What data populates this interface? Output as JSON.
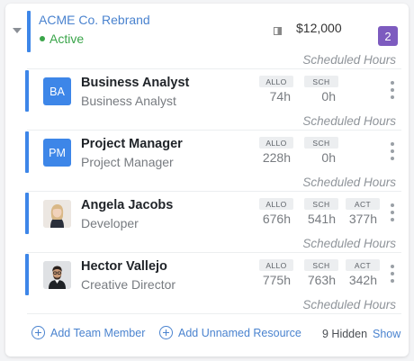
{
  "project": {
    "title": "ACME Co. Rebrand",
    "status": "Active",
    "budget": "$12,000",
    "member_count": "2",
    "section_label": "Scheduled Hours",
    "colors": {
      "accent": "#3d86e8",
      "active": "#3aa54a",
      "badge": "#7d5bbf"
    }
  },
  "members": [
    {
      "initials": "BA",
      "name": "Business Analyst",
      "role": "Business Analyst",
      "metrics": [
        {
          "label": "ALLO",
          "value": "74h"
        },
        {
          "label": "SCH",
          "value": "0h"
        }
      ],
      "footer_label": "Scheduled Hours"
    },
    {
      "initials": "PM",
      "name": "Project Manager",
      "role": "Project Manager",
      "metrics": [
        {
          "label": "ALLO",
          "value": "228h"
        },
        {
          "label": "SCH",
          "value": "0h"
        }
      ],
      "footer_label": "Scheduled Hours"
    },
    {
      "photo": "female-portrait",
      "name": "Angela Jacobs",
      "role": "Developer",
      "metrics": [
        {
          "label": "ALLO",
          "value": "676h"
        },
        {
          "label": "SCH",
          "value": "541h"
        },
        {
          "label": "ACT",
          "value": "377h"
        }
      ],
      "footer_label": "Scheduled Hours"
    },
    {
      "photo": "male-portrait",
      "name": "Hector Vallejo",
      "role": "Creative Director",
      "metrics": [
        {
          "label": "ALLO",
          "value": "775h"
        },
        {
          "label": "SCH",
          "value": "763h"
        },
        {
          "label": "ACT",
          "value": "342h"
        }
      ],
      "footer_label": "Scheduled Hours"
    }
  ],
  "footer": {
    "add_team_member": "Add Team Member",
    "add_unnamed_resource": "Add Unnamed Resource",
    "hidden_count": "9 Hidden",
    "show": "Show"
  }
}
